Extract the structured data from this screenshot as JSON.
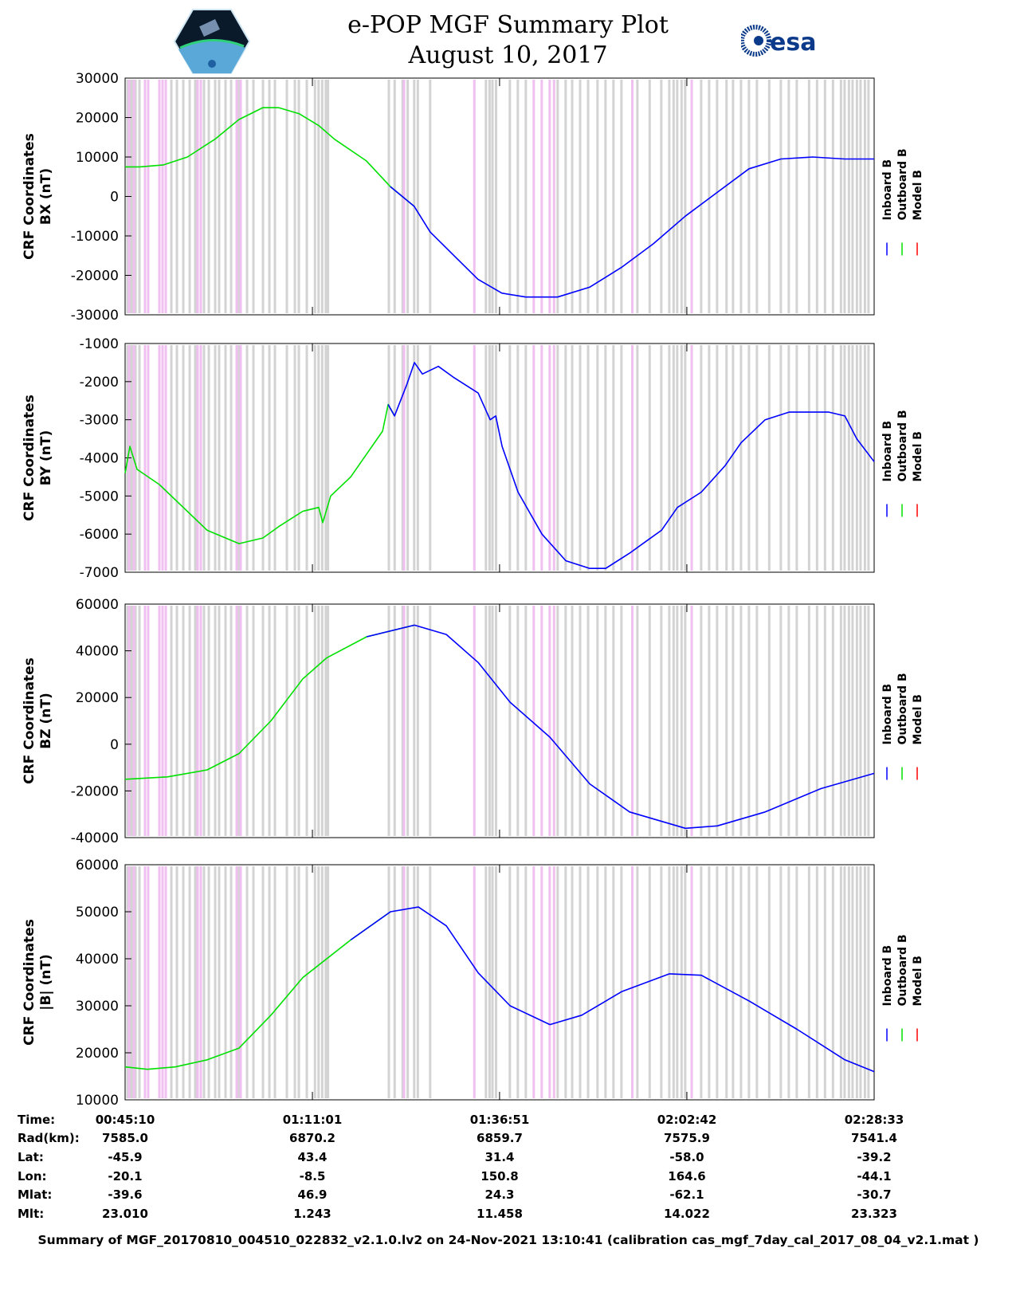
{
  "header": {
    "title": "e-POP MGF Summary Plot",
    "date": "August 10, 2017",
    "logo_left": "CASSIOPE",
    "logo_right": "esa"
  },
  "colors": {
    "inboard": "#0000ff",
    "outboard": "#00e000",
    "model": "#ff0000",
    "stripe_gray": "#d3d3d3",
    "stripe_pink": "#f0c0f0"
  },
  "chart_data": {
    "type": "line",
    "x_unit": "minutes since 00:45:10",
    "xlim": [
      0,
      103.38
    ],
    "xticks": [
      0,
      25.85,
      51.68,
      77.53,
      103.38
    ],
    "legend": [
      "Inboard B",
      "Outboard B",
      "Model B"
    ],
    "legend_placement": "right",
    "stripes": {
      "gray": [
        0.33,
        0.88,
        1.43,
        1.98,
        6.38,
        7.15,
        8.03,
        8.91,
        9.68,
        10.89,
        11.55,
        12.43,
        12.98,
        13.86,
        14.63,
        15.73,
        16.83,
        17.71,
        19.03,
        19.91,
        20.68,
        22.33,
        23.43,
        23.98,
        25.08,
        26.2,
        26.7,
        27.2,
        27.7,
        28.0,
        36.4,
        37.2,
        38.3,
        39.0,
        39.9,
        40.4,
        42.1,
        49.8,
        50.3,
        50.7,
        51.2,
        53.1,
        54.2,
        55.3,
        59.7,
        60.8,
        61.7,
        62.8,
        63.9,
        65.2,
        66.3,
        67.4,
        68.5,
        70.7,
        72.4,
        74.0,
        75.1,
        75.7,
        76.2,
        76.8,
        77.3,
        79.5,
        80.6,
        81.7,
        83.0,
        83.9,
        85.0,
        86.1,
        87.2,
        88.9,
        90.5,
        91.6,
        92.7,
        94.4,
        95.5,
        96.6,
        97.7,
        98.8,
        99.3,
        99.9,
        100.4,
        101.0,
        101.5,
        102.1,
        102.6
      ],
      "pink": [
        0.55,
        1.21,
        2.75,
        3.19,
        4.73,
        5.17,
        5.61,
        10.01,
        10.45,
        15.4,
        15.95,
        38.5,
        48.2,
        56.4,
        57.5,
        58.6,
        59.2,
        70.0,
        78.2
      ]
    },
    "panels": [
      {
        "ylabel1": "CRF Coordinates",
        "ylabel2": "BX (nT)",
        "ylim": [
          -30000,
          30000
        ],
        "yticks": [
          30000,
          20000,
          10000,
          0,
          -10000,
          -20000,
          -30000
        ],
        "outboard_until": 37.9,
        "x": [
          0,
          2.0,
          5.3,
          8.6,
          12.4,
          15.7,
          19.0,
          21.2,
          24.0,
          26.7,
          28.9,
          33.3,
          36.6,
          39.9,
          42.1,
          45.4,
          48.7,
          52.0,
          55.3,
          59.7,
          64.1,
          68.5,
          72.9,
          77.3,
          81.7,
          86.1,
          90.5,
          94.9,
          99.3,
          103.38
        ],
        "y": [
          7500,
          7500,
          8000,
          10000,
          14500,
          19500,
          22500,
          22500,
          21000,
          18000,
          14500,
          9000,
          2500,
          -2500,
          -9000,
          -15000,
          -21000,
          -24500,
          -25500,
          -25500,
          -23000,
          -18000,
          -12000,
          -5000,
          1000,
          7000,
          9500,
          10000,
          9500,
          9500
        ]
      },
      {
        "ylabel1": "CRF Coordinates",
        "ylabel2": "BY (nT)",
        "ylim": [
          -7000,
          -1000
        ],
        "yticks": [
          -1000,
          -2000,
          -3000,
          -4000,
          -5000,
          -6000,
          -7000
        ],
        "outboard_until": 36.8,
        "x": [
          0,
          0.66,
          1.65,
          4.73,
          8.03,
          11.33,
          15.73,
          19.03,
          21.23,
          24.53,
          26.73,
          27.28,
          28.38,
          31.13,
          33.33,
          35.53,
          36.3,
          37.18,
          38.83,
          39.93,
          41.03,
          43.23,
          45.43,
          48.73,
          50.38,
          51.15,
          52.03,
          54.23,
          57.53,
          60.83,
          64.13,
          66.33,
          69.63,
          71.83,
          74.03,
          76.23,
          79.53,
          82.83,
          85.03,
          88.33,
          91.63,
          97.13,
          99.33,
          100.98,
          103.38
        ],
        "y": [
          -4400,
          -3700,
          -4300,
          -4700,
          -5300,
          -5900,
          -6250,
          -6100,
          -5800,
          -5400,
          -5300,
          -5700,
          -5000,
          -4500,
          -3900,
          -3300,
          -2600,
          -2900,
          -2100,
          -1500,
          -1800,
          -1600,
          -1900,
          -2300,
          -3000,
          -2900,
          -3700,
          -4900,
          -6000,
          -6700,
          -6900,
          -6900,
          -6500,
          -6200,
          -5900,
          -5300,
          -4900,
          -4200,
          -3600,
          -3000,
          -2800,
          -2800,
          -2900,
          -3500,
          -4100
        ]
      },
      {
        "ylabel1": "CRF Coordinates",
        "ylabel2": "BZ (nT)",
        "ylim": [
          -40000,
          60000
        ],
        "yticks": [
          60000,
          40000,
          20000,
          0,
          -20000,
          -40000
        ],
        "outboard_until": 33.8,
        "x": [
          0,
          5.83,
          11.33,
          15.73,
          20.13,
          24.53,
          27.83,
          33.33,
          39.93,
          44.33,
          48.73,
          53.13,
          58.63,
          64.13,
          69.63,
          77.33,
          81.73,
          88.33,
          96.03,
          103.38
        ],
        "y": [
          -15000,
          -14000,
          -11000,
          -4000,
          10000,
          28000,
          37000,
          46000,
          51000,
          47000,
          35000,
          18000,
          3000,
          -17000,
          -29000,
          -36000,
          -35000,
          -29000,
          -19000,
          -12500
        ]
      },
      {
        "ylabel1": "CRF Coordinates",
        "ylabel2": "|B| (nT)",
        "ylim": [
          10000,
          60000
        ],
        "yticks": [
          60000,
          50000,
          40000,
          30000,
          20000,
          10000
        ],
        "outboard_until": 31.2,
        "x": [
          0,
          3.08,
          6.93,
          11.33,
          15.73,
          20.13,
          24.53,
          31.13,
          36.63,
          40.48,
          44.33,
          48.73,
          53.13,
          58.63,
          63.03,
          68.53,
          75.13,
          79.53,
          86.13,
          92.73,
          99.33,
          103.38
        ],
        "y": [
          17000,
          16500,
          17000,
          18500,
          21000,
          28000,
          36000,
          44000,
          50000,
          51000,
          47000,
          37000,
          30000,
          26000,
          28000,
          33000,
          36800,
          36500,
          31000,
          25000,
          18500,
          16000
        ]
      }
    ]
  },
  "table": {
    "row_labels": [
      "Time:",
      "Rad(km):",
      "Lat:",
      "Lon:",
      "Mlat:",
      "Mlt:"
    ],
    "columns": [
      [
        "00:45:10",
        "7585.0",
        "-45.9",
        "-20.1",
        "-39.6",
        "23.010"
      ],
      [
        "01:11:01",
        "6870.2",
        "43.4",
        "-8.5",
        "46.9",
        "1.243"
      ],
      [
        "01:36:51",
        "6859.7",
        "31.4",
        "150.8",
        "24.3",
        "11.458"
      ],
      [
        "02:02:42",
        "7575.9",
        "-58.0",
        "164.6",
        "-62.1",
        "14.022"
      ],
      [
        "02:28:33",
        "7541.4",
        "-39.2",
        "-44.1",
        "-30.7",
        "23.323"
      ]
    ]
  },
  "footer": "Summary of MGF_20170810_004510_022832_v2.1.0.lv2 on 24-Nov-2021 13:10:41 (calibration cas_mgf_7day_cal_2017_08_04_v2.1.mat )"
}
